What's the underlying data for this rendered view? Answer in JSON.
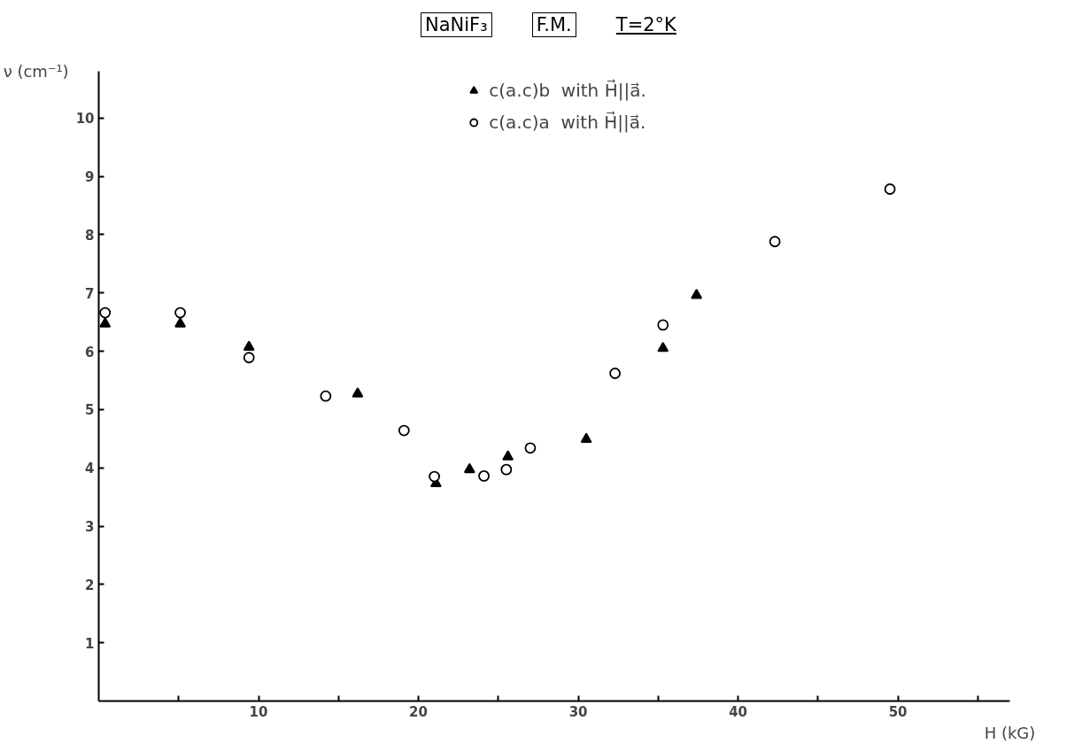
{
  "chart_data": {
    "type": "scatter",
    "title": "NaNiF₃",
    "annotations": [
      "F.M.",
      "T=2°K"
    ],
    "xlabel": "H (kG)",
    "ylabel": "ν (cm⁻¹)",
    "xlim": [
      0,
      57
    ],
    "ylim": [
      0,
      10.8
    ],
    "xticks": [
      {
        "value": 5,
        "label": null
      },
      10,
      {
        "value": 15,
        "label": null
      },
      20,
      {
        "value": 25,
        "label": null
      },
      30,
      {
        "value": 35,
        "label": null
      },
      40,
      {
        "value": 45,
        "label": null
      },
      50,
      {
        "value": 55,
        "label": null
      }
    ],
    "yticks": [
      1,
      2,
      3,
      4,
      5,
      6,
      7,
      8,
      9,
      10
    ],
    "grid": false,
    "legend": "top",
    "series": [
      {
        "name": "c(a.c)b  with H⃗||a⃗.",
        "color": "#000000",
        "marker": "triangle",
        "x": [
          0.4,
          5.1,
          9.4,
          16.2,
          21.1,
          23.2,
          25.6,
          30.5,
          35.3,
          37.4
        ],
        "values": [
          6.47,
          6.47,
          6.07,
          5.27,
          3.73,
          3.97,
          4.19,
          4.49,
          6.05,
          6.96
        ]
      },
      {
        "name": "c(a.c)a  with H⃗||a⃗.",
        "color": "#000000",
        "marker": "circle",
        "x": [
          0.4,
          5.1,
          9.4,
          14.2,
          19.1,
          21.0,
          24.1,
          25.5,
          27.0,
          32.3,
          35.3,
          42.3,
          49.5
        ],
        "values": [
          6.66,
          6.66,
          5.89,
          5.23,
          4.64,
          3.85,
          3.86,
          3.97,
          4.34,
          5.62,
          6.45,
          7.88,
          8.78
        ]
      }
    ]
  }
}
